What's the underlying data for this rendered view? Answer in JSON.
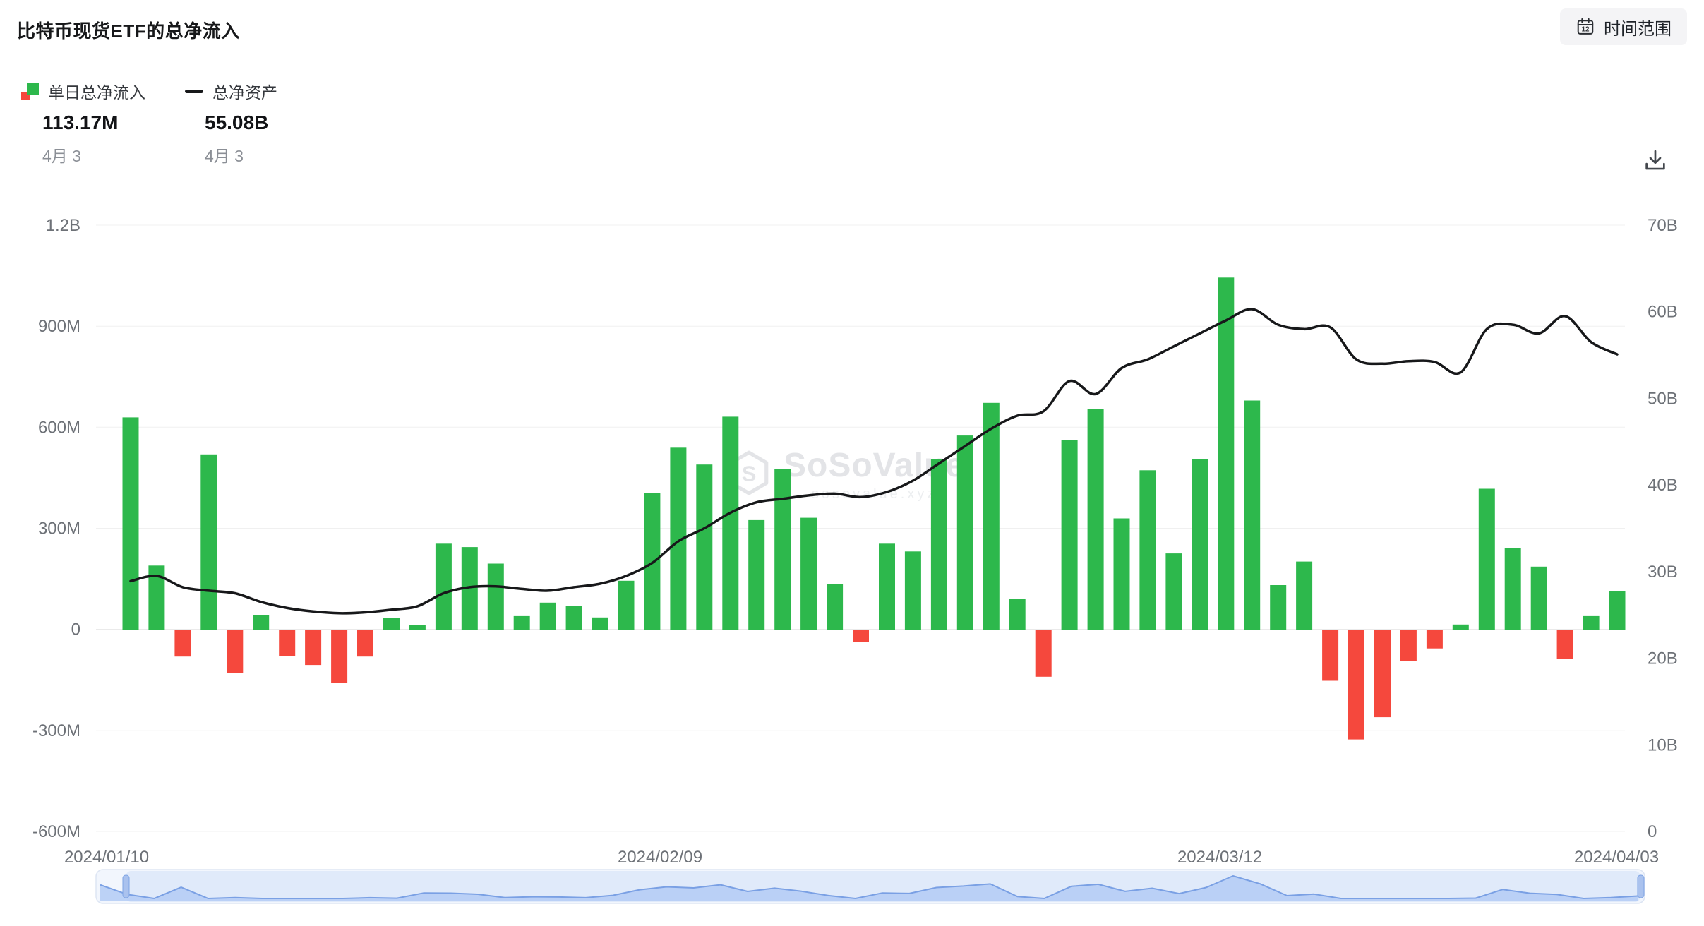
{
  "header": {
    "title": "比特币现货ETF的总净流入",
    "time_range_label": "时间范围"
  },
  "legend": {
    "bar_label": "单日总净流入",
    "line_label": "总净资产"
  },
  "stats": {
    "daily_value": "113.17M",
    "daily_date": "4月 3",
    "assets_value": "55.08B",
    "assets_date": "4月 3"
  },
  "watermark": {
    "brand": "SoSoValue",
    "sub": "sosovalue.xyz"
  },
  "chart_data": {
    "type": "bar",
    "series": [
      {
        "name": "单日总净流入",
        "type": "bar",
        "unit": "M",
        "axis": "left"
      },
      {
        "name": "总净资产",
        "type": "line",
        "unit": "B",
        "axis": "right"
      }
    ],
    "bar_values": [
      630,
      190,
      -80,
      520,
      -130,
      42,
      -78,
      -105,
      -158,
      -80,
      35,
      14,
      255,
      245,
      196,
      40,
      80,
      70,
      36,
      145,
      405,
      540,
      490,
      632,
      325,
      476,
      332,
      135,
      -36,
      255,
      232,
      506,
      576,
      673,
      92,
      -140,
      562,
      655,
      330,
      473,
      226,
      505,
      1045,
      680,
      132,
      202,
      -152,
      -326,
      -260,
      -94,
      -56,
      15,
      418,
      243,
      187,
      -86,
      40,
      113.17
    ],
    "line_values": [
      28.9,
      29.5,
      28.2,
      27.8,
      27.5,
      26.5,
      25.8,
      25.4,
      25.2,
      25.3,
      25.6,
      26.0,
      27.5,
      28.2,
      28.3,
      28.0,
      27.8,
      28.2,
      28.6,
      29.5,
      31.0,
      33.5,
      35.0,
      36.8,
      38.0,
      38.4,
      38.8,
      39.0,
      38.6,
      39.2,
      40.5,
      42.5,
      44.5,
      46.5,
      48.0,
      48.5,
      52.0,
      50.5,
      53.5,
      54.5,
      56.0,
      57.5,
      59.0,
      60.3,
      58.5,
      58.0,
      58.2,
      54.5,
      54.0,
      54.3,
      54.2,
      53.0,
      58.0,
      58.5,
      57.5,
      59.5,
      56.5,
      55.08
    ],
    "left_axis": {
      "ticks": [
        "1.2B",
        "900M",
        "600M",
        "300M",
        "0",
        "-300M",
        "-600M"
      ],
      "min": -600,
      "max": 1200,
      "unit": "M"
    },
    "right_axis": {
      "ticks": [
        "70B",
        "60B",
        "50B",
        "40B",
        "30B",
        "20B",
        "10B",
        "0"
      ],
      "min": 0,
      "max": 70,
      "unit": "B"
    },
    "x_ticks": [
      "2024/01/10",
      "2024/02/09",
      "2024/03/12",
      "2024/04/03"
    ],
    "grid": true,
    "legend_position": "top-left",
    "colors": {
      "positive": "#2db84c",
      "negative": "#f5483d",
      "line": "#17181a",
      "axis_label": "#6d7177",
      "grid": "#f0f0f0",
      "zero_line": "#e3e3e3",
      "nav_area": "#b3cbf4",
      "nav_line": "#7aa0e4"
    }
  }
}
